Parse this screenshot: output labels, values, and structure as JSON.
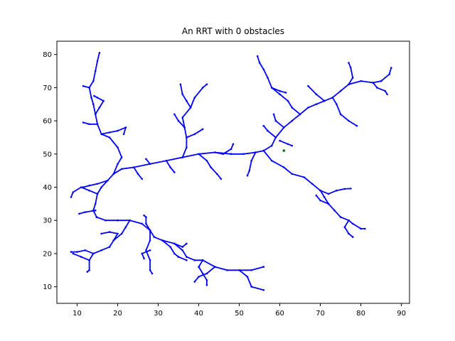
{
  "chart_data": {
    "type": "scatter",
    "title": "An RRT with 0 obstacles",
    "xlabel": "",
    "ylabel": "",
    "xlim": [
      5,
      92
    ],
    "ylim": [
      5,
      84
    ],
    "x_ticks": [
      "10",
      "20",
      "30",
      "40",
      "50",
      "60",
      "70",
      "80",
      "90"
    ],
    "y_ticks": [
      "10",
      "20",
      "30",
      "40",
      "50",
      "60",
      "70",
      "80"
    ],
    "grid": false,
    "legend": "none",
    "colors": {
      "tree": "#0000ff",
      "goal": "#008000",
      "axes": "#000000"
    },
    "goal_point": [
      61,
      51
    ],
    "branches": [
      [
        [
          48,
          50
        ],
        [
          44,
          50.5
        ],
        [
          40,
          50
        ],
        [
          36,
          49
        ],
        [
          32,
          48
        ],
        [
          28,
          47
        ],
        [
          24,
          46
        ],
        [
          21,
          45.5
        ],
        [
          19,
          44
        ],
        [
          17.5,
          42
        ],
        [
          16,
          40
        ],
        [
          15,
          38
        ],
        [
          14.5,
          35
        ],
        [
          14,
          33
        ],
        [
          14.8,
          31
        ]
      ],
      [
        [
          14.8,
          31
        ],
        [
          17,
          30
        ],
        [
          20,
          30
        ],
        [
          23,
          30
        ],
        [
          26,
          29
        ],
        [
          28,
          27
        ],
        [
          29,
          25
        ],
        [
          31,
          24
        ],
        [
          34,
          23
        ],
        [
          36,
          21
        ],
        [
          37,
          19
        ],
        [
          39,
          18
        ],
        [
          41,
          18
        ]
      ],
      [
        [
          41,
          18
        ],
        [
          44,
          16
        ],
        [
          47,
          15
        ],
        [
          50,
          15
        ],
        [
          52,
          13
        ],
        [
          53,
          10
        ],
        [
          56,
          9
        ]
      ],
      [
        [
          44,
          16
        ],
        [
          42,
          14
        ],
        [
          40,
          13
        ],
        [
          39,
          11.5
        ]
      ],
      [
        [
          41,
          18
        ],
        [
          40,
          16
        ],
        [
          41,
          14
        ],
        [
          42,
          12
        ],
        [
          42,
          10.5
        ]
      ],
      [
        [
          50,
          15
        ],
        [
          53,
          15
        ],
        [
          56,
          16
        ]
      ],
      [
        [
          31,
          24
        ],
        [
          33,
          22
        ],
        [
          34,
          20
        ],
        [
          35,
          19
        ],
        [
          37,
          18
        ]
      ],
      [
        [
          34,
          23
        ],
        [
          36,
          22
        ],
        [
          37,
          23
        ]
      ],
      [
        [
          28,
          27
        ],
        [
          27,
          29
        ],
        [
          27,
          31
        ],
        [
          26.5,
          31.5
        ]
      ],
      [
        [
          28,
          27
        ],
        [
          28,
          24
        ],
        [
          27,
          21
        ],
        [
          28,
          18
        ],
        [
          28,
          15
        ],
        [
          28.5,
          14
        ]
      ],
      [
        [
          28,
          21
        ],
        [
          26,
          20
        ],
        [
          26.5,
          18.5
        ]
      ],
      [
        [
          23,
          30
        ],
        [
          22,
          28
        ],
        [
          21,
          26
        ],
        [
          19,
          24
        ],
        [
          18,
          22
        ],
        [
          16,
          21
        ],
        [
          14,
          20
        ],
        [
          13,
          18
        ],
        [
          13,
          15
        ],
        [
          12.5,
          14.5
        ]
      ],
      [
        [
          19,
          24
        ],
        [
          20,
          26
        ],
        [
          18,
          26.5
        ],
        [
          16,
          26
        ]
      ],
      [
        [
          14,
          20
        ],
        [
          12,
          21
        ],
        [
          10,
          20.5
        ],
        [
          8.5,
          20.5
        ]
      ],
      [
        [
          13,
          18
        ],
        [
          11,
          19
        ],
        [
          9,
          20
        ]
      ],
      [
        [
          14.5,
          33
        ],
        [
          12,
          32.5
        ],
        [
          10.5,
          32
        ]
      ],
      [
        [
          15,
          38
        ],
        [
          13,
          39
        ],
        [
          11,
          40
        ],
        [
          9,
          38.5
        ],
        [
          8.5,
          37
        ]
      ],
      [
        [
          17.5,
          42
        ],
        [
          15,
          41
        ],
        [
          13,
          40.5
        ],
        [
          11.5,
          40
        ]
      ],
      [
        [
          19,
          44
        ],
        [
          20,
          47
        ],
        [
          21,
          49
        ],
        [
          20,
          52
        ],
        [
          18,
          55
        ],
        [
          16,
          56
        ],
        [
          15,
          59
        ],
        [
          14.5,
          62
        ],
        [
          14,
          65
        ],
        [
          13.5,
          67
        ],
        [
          13,
          70
        ],
        [
          14,
          72
        ],
        [
          14.5,
          75
        ],
        [
          15,
          78
        ],
        [
          15.5,
          80.5
        ]
      ],
      [
        [
          16,
          56
        ],
        [
          18,
          56.5
        ],
        [
          20,
          57
        ],
        [
          22,
          58
        ],
        [
          21.5,
          56
        ]
      ],
      [
        [
          15,
          59
        ],
        [
          13,
          59
        ],
        [
          11.5,
          59.5
        ]
      ],
      [
        [
          14.5,
          62
        ],
        [
          15.5,
          64
        ],
        [
          16.5,
          66
        ],
        [
          15,
          67
        ],
        [
          14.2,
          67.5
        ]
      ],
      [
        [
          13,
          70
        ],
        [
          11.5,
          70.5
        ]
      ],
      [
        [
          24,
          46
        ],
        [
          25,
          44
        ],
        [
          26,
          42.5
        ]
      ],
      [
        [
          28,
          47
        ],
        [
          27,
          48.5
        ]
      ],
      [
        [
          32,
          48
        ],
        [
          33,
          46
        ],
        [
          34,
          44.5
        ]
      ],
      [
        [
          36,
          49
        ],
        [
          37,
          52
        ],
        [
          37,
          55
        ],
        [
          36.5,
          58
        ],
        [
          36,
          61
        ],
        [
          38,
          64
        ],
        [
          39,
          67
        ],
        [
          41,
          70
        ],
        [
          42,
          71
        ]
      ],
      [
        [
          36.5,
          58
        ],
        [
          35,
          60
        ],
        [
          34,
          62
        ]
      ],
      [
        [
          37,
          55
        ],
        [
          39,
          56
        ],
        [
          41,
          57.5
        ]
      ],
      [
        [
          38,
          64
        ],
        [
          37,
          66
        ],
        [
          36,
          68
        ],
        [
          35.5,
          71
        ]
      ],
      [
        [
          40,
          50
        ],
        [
          42,
          48
        ],
        [
          43,
          46
        ],
        [
          44.5,
          44
        ],
        [
          45.5,
          42.5
        ]
      ],
      [
        [
          44,
          50.5
        ],
        [
          46,
          50
        ],
        [
          48,
          51.5
        ],
        [
          48.5,
          53
        ]
      ],
      [
        [
          48,
          50
        ],
        [
          51,
          50
        ],
        [
          54,
          50.5
        ],
        [
          56,
          51
        ],
        [
          58,
          52.5
        ],
        [
          59,
          55
        ],
        [
          61,
          58
        ],
        [
          63,
          60
        ],
        [
          65,
          62
        ],
        [
          67,
          64
        ],
        [
          69,
          65
        ],
        [
          71,
          66
        ],
        [
          73,
          67
        ],
        [
          75,
          69
        ],
        [
          77,
          71
        ],
        [
          80,
          72
        ],
        [
          83,
          71.5
        ],
        [
          85,
          72
        ],
        [
          87,
          74
        ],
        [
          87.5,
          76
        ]
      ],
      [
        [
          54,
          50.5
        ],
        [
          53,
          48
        ],
        [
          52.5,
          45
        ],
        [
          52,
          43.5
        ]
      ],
      [
        [
          56,
          51
        ],
        [
          58,
          48
        ],
        [
          61,
          46
        ],
        [
          63,
          44
        ],
        [
          66,
          43
        ],
        [
          68,
          41
        ],
        [
          70,
          39
        ],
        [
          72,
          38
        ],
        [
          74,
          39
        ],
        [
          76,
          39.5
        ],
        [
          77.5,
          39.6
        ]
      ],
      [
        [
          70,
          39
        ],
        [
          71,
          37
        ],
        [
          72,
          35
        ],
        [
          73.5,
          33
        ],
        [
          75,
          31
        ],
        [
          77,
          30
        ],
        [
          78,
          29
        ],
        [
          80,
          27.5
        ],
        [
          81,
          27.5
        ]
      ],
      [
        [
          77,
          30
        ],
        [
          76,
          28
        ],
        [
          77,
          26
        ],
        [
          78,
          25
        ]
      ],
      [
        [
          72,
          35
        ],
        [
          70,
          36
        ],
        [
          69,
          37.5
        ]
      ],
      [
        [
          61,
          58
        ],
        [
          59,
          60
        ],
        [
          58.5,
          62
        ]
      ],
      [
        [
          65,
          62
        ],
        [
          63,
          64
        ],
        [
          62,
          66
        ],
        [
          60,
          68
        ],
        [
          58,
          70
        ],
        [
          57,
          73
        ],
        [
          56,
          75.5
        ],
        [
          55,
          77.5
        ],
        [
          54.5,
          79.5
        ]
      ],
      [
        [
          58,
          70
        ],
        [
          60,
          69
        ],
        [
          61.5,
          68.5
        ]
      ],
      [
        [
          71,
          66
        ],
        [
          69,
          68
        ],
        [
          67,
          70.5
        ]
      ],
      [
        [
          73,
          67
        ],
        [
          74,
          65
        ],
        [
          75,
          62
        ],
        [
          77,
          60
        ],
        [
          79,
          58.5
        ]
      ],
      [
        [
          77,
          71
        ],
        [
          78,
          73
        ],
        [
          77.5,
          76
        ],
        [
          77,
          77.5
        ]
      ],
      [
        [
          83,
          71.5
        ],
        [
          84,
          70
        ],
        [
          86,
          69
        ],
        [
          86.5,
          68
        ]
      ],
      [
        [
          59,
          55
        ],
        [
          57,
          57
        ],
        [
          56,
          58.5
        ]
      ],
      [
        [
          60,
          54
        ],
        [
          62,
          53
        ],
        [
          63,
          52.5
        ]
      ]
    ]
  }
}
